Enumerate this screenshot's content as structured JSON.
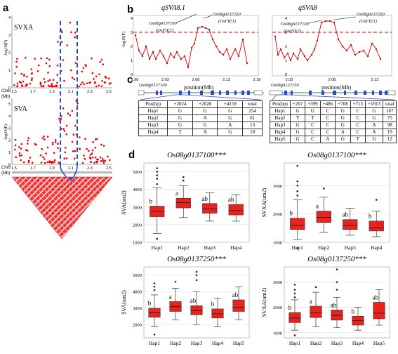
{
  "panel_labels": {
    "a": "a",
    "b": "b",
    "c": "c",
    "d": "d"
  },
  "panel_a": {
    "top_label": "SVXA",
    "bottom_label": "SVA",
    "ylabel": "-log10(P)",
    "chr_label": "Chr8",
    "mb_label": "(Mb)",
    "top_yticks": [
      "0",
      "1",
      "2",
      "3",
      "4"
    ],
    "bottom_yticks": [
      "0",
      "1",
      "2",
      "3",
      "4",
      "5"
    ],
    "xticks": [
      "1.5",
      "1.7",
      "1.9",
      "2.1",
      "2.3",
      "2.5"
    ]
  },
  "panel_b": {
    "left": {
      "title": "qSVA8.1",
      "xlabel": "position(Mb)",
      "ylabel": "-log10(P)",
      "yticks": [
        "0",
        "1",
        "2",
        "3",
        "4"
      ],
      "xticks": [
        "1.98",
        "2.03",
        "2.08",
        "2.13",
        "2.18"
      ],
      "gene1": "Os08g0137100",
      "gene1_alias": "(OsFIE2)",
      "gene2": "Os08g0137250",
      "gene2_alias": "(OsFIE1)"
    },
    "right": {
      "title": "qSVA8",
      "xlabel": "position(Mb)",
      "yticks": [
        "0",
        "1",
        "2",
        "3",
        "4"
      ],
      "xticks": [
        "2.03",
        "2.08",
        "2.13"
      ],
      "gene1": "Os08g0137100",
      "gene1_alias": "(OsFIE2)",
      "gene2": "Os08g0137250",
      "gene2_alias": "(OsFIE1)"
    }
  },
  "panel_c": {
    "left_gene": "Os08g0137100",
    "right_gene": "Os08g0137250",
    "left_table": {
      "header": [
        "Pos(bp)",
        "+2024",
        "+2028",
        "+4159",
        "total"
      ],
      "rows": [
        [
          "Hap1",
          "G",
          "G",
          "G",
          "254"
        ],
        [
          "Hap2",
          "G",
          "A",
          "G",
          "61"
        ],
        [
          "Hap3",
          "G",
          "G",
          "A",
          "13"
        ],
        [
          "Hap4",
          "T",
          "A",
          "G",
          "10"
        ]
      ]
    },
    "right_table": {
      "header": [
        "Pos(bp)",
        "+267",
        "+399",
        "+486",
        "+708",
        "+713",
        "+1813",
        "total"
      ],
      "rows": [
        [
          "Hap1",
          "G",
          "G",
          "C",
          "G",
          "C",
          "G",
          "167"
        ],
        [
          "Hap2",
          "T",
          "T",
          "C",
          "G",
          "C",
          "G",
          "75"
        ],
        [
          "Hap3",
          "G",
          "C",
          "C",
          "G",
          "C",
          "A",
          "98"
        ],
        [
          "Hap4",
          "G",
          "C",
          "C",
          "A",
          "C",
          "A",
          "19"
        ],
        [
          "Hap5",
          "G",
          "C",
          "A",
          "G",
          "T",
          "G",
          "12"
        ]
      ]
    }
  },
  "chart_data": [
    {
      "type": "box",
      "title": "Os08g0137100***",
      "ylabel": "SVA(um2)",
      "ylim": [
        1000,
        5500
      ],
      "yticks": [
        "1000",
        "2000",
        "3000",
        "4000",
        "5000"
      ],
      "categories": [
        "Hap1",
        "Hap2",
        "Hap3",
        "Hap4"
      ],
      "letters": [
        "b",
        "a",
        "ab",
        "ab"
      ],
      "boxes": [
        {
          "min": 1500,
          "q1": 2450,
          "median": 2750,
          "q3": 3050,
          "max": 4100
        },
        {
          "min": 2400,
          "q1": 2950,
          "median": 3250,
          "q3": 3500,
          "max": 4200
        },
        {
          "min": 2200,
          "q1": 2650,
          "median": 2900,
          "q3": 3200,
          "max": 3800
        },
        {
          "min": 2200,
          "q1": 2550,
          "median": 2800,
          "q3": 3150,
          "max": 3700
        }
      ],
      "outliers": [
        [
          1200,
          4300,
          4600,
          4800,
          5000,
          5200
        ],
        [
          4500,
          4700
        ],
        [],
        []
      ]
    },
    {
      "type": "box",
      "title": "Os08g0137100***",
      "ylabel": "SVXA(um2)",
      "ylim": [
        1000,
        3800
      ],
      "yticks": [
        "1000",
        "2000",
        "3000"
      ],
      "categories": [
        "Hap1",
        "Hap2",
        "Hap3",
        "Hap4"
      ],
      "letters": [
        "b",
        "a",
        "ab",
        "b"
      ],
      "boxes": [
        {
          "min": 1100,
          "q1": 1450,
          "median": 1600,
          "q3": 1850,
          "max": 2500
        },
        {
          "min": 1350,
          "q1": 1700,
          "median": 1880,
          "q3": 2100,
          "max": 2600
        },
        {
          "min": 1250,
          "q1": 1450,
          "median": 1600,
          "q3": 1800,
          "max": 2200
        },
        {
          "min": 1200,
          "q1": 1400,
          "median": 1520,
          "q3": 1750,
          "max": 2100
        }
      ],
      "outliers": [
        [
          800,
          2650,
          2800,
          3000,
          3150,
          3700
        ],
        [
          2900
        ],
        [],
        [
          2500
        ]
      ]
    },
    {
      "type": "box",
      "title": "Os08g0137250***",
      "ylabel": "SVA(um2)",
      "ylim": [
        1200,
        5500
      ],
      "yticks": [
        "2000",
        "3000",
        "4000",
        "5000"
      ],
      "categories": [
        "Hap1",
        "Hap2",
        "Hap3",
        "Hap4",
        "Hap5"
      ],
      "letters": [
        "b",
        "a",
        "ab",
        "b",
        "ab"
      ],
      "boxes": [
        {
          "min": 1900,
          "q1": 2450,
          "median": 2750,
          "q3": 3000,
          "max": 3800
        },
        {
          "min": 2300,
          "q1": 2800,
          "median": 3100,
          "q3": 3400,
          "max": 4200
        },
        {
          "min": 2000,
          "q1": 2600,
          "median": 2850,
          "q3": 3150,
          "max": 4000
        },
        {
          "min": 1900,
          "q1": 2400,
          "median": 2650,
          "q3": 2950,
          "max": 3600
        },
        {
          "min": 2300,
          "q1": 2800,
          "median": 3050,
          "q3": 3500,
          "max": 4300
        }
      ],
      "outliers": [
        [
          1400,
          4100,
          4300,
          4500
        ],
        [
          4600
        ],
        [
          4700,
          5000,
          5200
        ],
        [],
        []
      ]
    },
    {
      "type": "box",
      "title": "Os08g0137250***",
      "ylabel": "SVXA(um2)",
      "ylim": [
        800,
        3600
      ],
      "yticks": [
        "1000",
        "2000",
        "3000"
      ],
      "categories": [
        "Hap1",
        "Hap2",
        "Hap3",
        "Hap4",
        "Hap5"
      ],
      "letters": [
        "b",
        "a",
        "ab",
        "b",
        "ab"
      ],
      "boxes": [
        {
          "min": 1100,
          "q1": 1400,
          "median": 1580,
          "q3": 1800,
          "max": 2300
        },
        {
          "min": 1250,
          "q1": 1600,
          "median": 1800,
          "q3": 2050,
          "max": 2600
        },
        {
          "min": 1200,
          "q1": 1500,
          "median": 1680,
          "q3": 1900,
          "max": 2400
        },
        {
          "min": 1100,
          "q1": 1300,
          "median": 1480,
          "q3": 1650,
          "max": 2000
        },
        {
          "min": 1300,
          "q1": 1550,
          "median": 1780,
          "q3": 2200,
          "max": 2700
        }
      ],
      "outliers": [
        [
          900,
          2400,
          2550,
          2700,
          2900
        ],
        [
          2800
        ],
        [
          2700,
          3000,
          3500
        ],
        [],
        []
      ]
    }
  ]
}
